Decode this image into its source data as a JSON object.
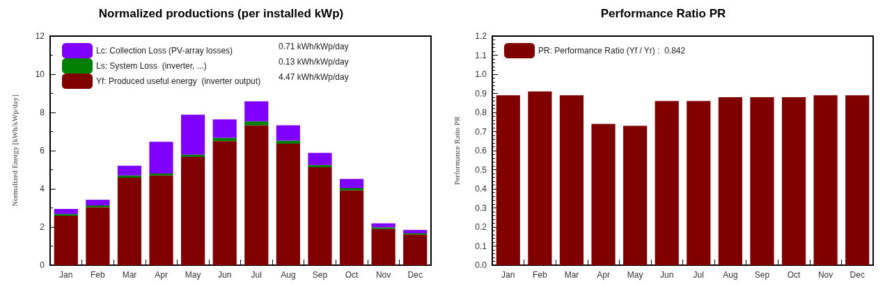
{
  "chart_data": [
    {
      "type": "bar",
      "title": "Normalized productions (per installed kWp)",
      "ylabel": "Normalized Energy [kWh/kWp/day]",
      "categories": [
        "Jan",
        "Feb",
        "Mar",
        "Apr",
        "May",
        "Jun",
        "Jul",
        "Aug",
        "Sep",
        "Oct",
        "Nov",
        "Dec"
      ],
      "stacked": true,
      "series": [
        {
          "name": "Yf: Produced useful energy  (inverter output)",
          "color": "#800000",
          "values": [
            2.58,
            3.04,
            4.58,
            4.7,
            5.67,
            6.5,
            7.33,
            6.36,
            5.13,
            3.92,
            1.9,
            1.61
          ]
        },
        {
          "name": "Ls: System Loss  (inverter, ...)",
          "color": "#008000",
          "values": [
            0.1,
            0.09,
            0.12,
            0.1,
            0.12,
            0.17,
            0.21,
            0.17,
            0.12,
            0.12,
            0.08,
            0.06
          ]
        },
        {
          "name": "Lc: Collection Loss (PV-array losses)",
          "color": "#8000ff",
          "values": [
            0.27,
            0.3,
            0.51,
            1.66,
            2.09,
            0.97,
            1.04,
            0.8,
            0.63,
            0.48,
            0.21,
            0.18
          ]
        }
      ],
      "annotations": [
        "4.47 kWh/kWp/day",
        "0.13 kWh/kWp/day",
        "0.71 kWh/kWp/day"
      ],
      "ylim": [
        0,
        12
      ],
      "yticks": [
        0,
        2,
        4,
        6,
        8,
        10,
        12
      ],
      "grid": false,
      "legend": "top left"
    },
    {
      "type": "bar",
      "title": "Performance Ratio PR",
      "ylabel": "Performance Ratio PR",
      "categories": [
        "Jan",
        "Feb",
        "Mar",
        "Apr",
        "May",
        "Jun",
        "Jul",
        "Aug",
        "Sep",
        "Oct",
        "Nov",
        "Dec"
      ],
      "series": [
        {
          "name": "PR: Performance Ratio (Yf / Yr) :  0.842",
          "color": "#800000",
          "values": [
            0.89,
            0.91,
            0.89,
            0.74,
            0.73,
            0.86,
            0.86,
            0.88,
            0.88,
            0.88,
            0.89,
            0.89
          ]
        }
      ],
      "ylim": [
        0,
        1.2
      ],
      "yticks": [
        {
          "value": 0,
          "label": "0.0"
        },
        {
          "value": 0.1,
          "label": "0.1"
        },
        {
          "value": 0.2,
          "label": "0.2"
        },
        {
          "value": 0.3,
          "label": "0.3"
        },
        {
          "value": 0.4,
          "label": "0.4"
        },
        {
          "value": 0.5,
          "label": "0.5"
        },
        {
          "value": 0.6,
          "label": "0.6"
        },
        {
          "value": 0.7,
          "label": "0.7"
        },
        {
          "value": 0.8,
          "label": "0.8"
        },
        {
          "value": 0.9,
          "label": "0.9"
        },
        {
          "value": 1,
          "label": "1.0"
        },
        {
          "value": 1.1,
          "label": "1.1"
        },
        {
          "value": 1.2,
          "label": "1.2"
        }
      ],
      "grid": false,
      "legend": "top left"
    }
  ]
}
